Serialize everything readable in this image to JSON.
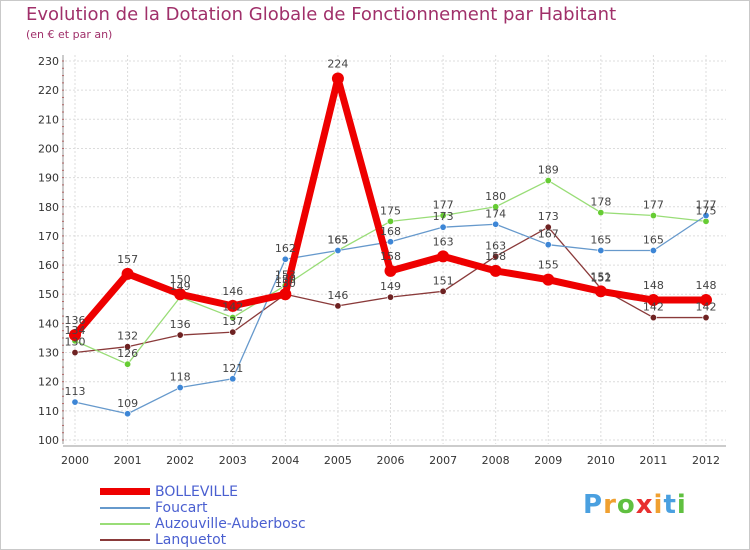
{
  "title": "Evolution de la Dotation Globale de Fonctionnement par Habitant",
  "subtitle": "(en € et par an)",
  "logo": {
    "letters": [
      "P",
      "r",
      "o",
      "x",
      "i",
      "t",
      "i"
    ],
    "colors": [
      "#4aa0e0",
      "#f0a030",
      "#60c040",
      "#e83030",
      "#f0a030",
      "#4aa0e0",
      "#60c040"
    ]
  },
  "chart_data": {
    "type": "line",
    "title": "Evolution de la Dotation Globale de Fonctionnement par Habitant",
    "subtitle": "(en € et par an)",
    "x": [
      "2000",
      "2001",
      "2002",
      "2003",
      "2004",
      "2005",
      "2006",
      "2007",
      "2008",
      "2009",
      "2010",
      "2011",
      "2012"
    ],
    "ylim": [
      100,
      230
    ],
    "yticks": [
      100,
      110,
      120,
      130,
      140,
      150,
      160,
      170,
      180,
      190,
      200,
      210,
      220,
      230
    ],
    "grid": true,
    "legend_position": "bottom-left",
    "series": [
      {
        "name": "BOLLEVILLE",
        "color": "#ee0000",
        "width": 7,
        "markerSize": 6,
        "values": [
          136,
          157,
          150,
          146,
          150,
          224,
          158,
          163,
          158,
          155,
          151,
          148,
          148
        ],
        "labels": [
          "136",
          "157",
          "150",
          "146",
          "150",
          "224",
          "158",
          "163",
          "158",
          "155",
          "151",
          "148",
          "148"
        ]
      },
      {
        "name": "Foucart",
        "color": "#6699cc",
        "width": 1.3,
        "markerSize": 3.2,
        "markerFill": "#3d86d6",
        "values": [
          113,
          109,
          118,
          121,
          162,
          165,
          168,
          173,
          174,
          167,
          165,
          165,
          177
        ],
        "labels": [
          "113",
          "109",
          "118",
          "121",
          "162",
          "165",
          "168",
          "173",
          "174",
          "167",
          "165",
          "165",
          "177"
        ]
      },
      {
        "name": "Auzouville-Auberbosc",
        "color": "#99dd77",
        "width": 1.3,
        "markerSize": 3.2,
        "markerFill": "#66cc33",
        "values": [
          134,
          126,
          149,
          142,
          153,
          165,
          175,
          177,
          180,
          189,
          178,
          177,
          175
        ],
        "labels": [
          "134",
          "126",
          "149",
          "142",
          "153",
          "165",
          "175",
          "177",
          "180",
          "189",
          "178",
          "177",
          "175"
        ]
      },
      {
        "name": "Lanquetot",
        "color": "#8a3a3a",
        "width": 1.3,
        "markerSize": 3.2,
        "markerFill": "#6e2222",
        "values": [
          130,
          132,
          136,
          137,
          150,
          146,
          149,
          151,
          163,
          173,
          152,
          142,
          142
        ],
        "labels": [
          "130",
          "132",
          "136",
          "137",
          "150",
          "146",
          "149",
          "151",
          "163",
          "173",
          "152",
          "142",
          "142"
        ]
      }
    ]
  }
}
